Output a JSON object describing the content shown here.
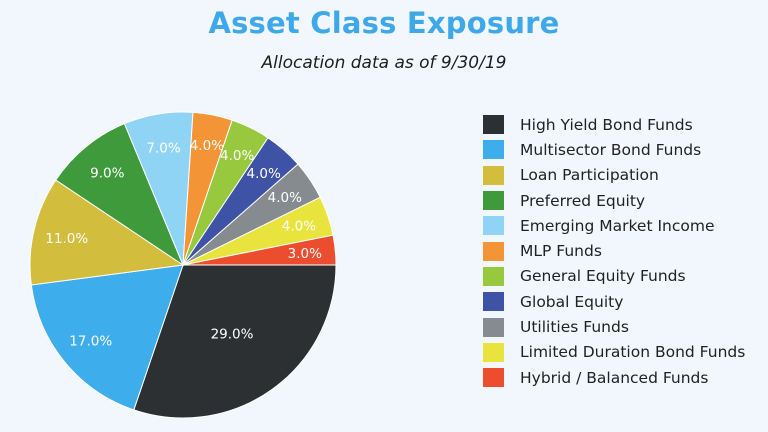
{
  "header": {
    "title": "Asset Class Exposure",
    "subtitle": "Allocation data as of 9/30/19"
  },
  "chart_data": {
    "type": "pie",
    "title": "Asset Class Exposure",
    "subtitle": "Allocation data as of 9/30/19",
    "legend_position": "right",
    "slices": [
      {
        "label": "High Yield Bond Funds",
        "value": 29.0,
        "display": "29.0%",
        "color": "#2d3033"
      },
      {
        "label": "Multisector Bond Funds",
        "value": 17.0,
        "display": "17.0%",
        "color": "#3daeeb"
      },
      {
        "label": "Loan Participation",
        "value": 11.0,
        "display": "11.0%",
        "color": "#d3bd3c"
      },
      {
        "label": "Preferred Equity",
        "value": 9.0,
        "display": "9.0%",
        "color": "#3f9a3b"
      },
      {
        "label": "Emerging Market Income",
        "value": 7.0,
        "display": "7.0%",
        "color": "#8fd4f4"
      },
      {
        "label": "MLP Funds",
        "value": 4.0,
        "display": "4.0%",
        "color": "#f39436"
      },
      {
        "label": "General Equity Funds",
        "value": 4.0,
        "display": "4.0%",
        "color": "#97c83d"
      },
      {
        "label": "Global Equity",
        "value": 4.0,
        "display": "4.0%",
        "color": "#3e52a6"
      },
      {
        "label": "Utilities Funds",
        "value": 4.0,
        "display": "4.0%",
        "color": "#868b8f"
      },
      {
        "label": "Limited Duration Bond Funds",
        "value": 4.0,
        "display": "4.0%",
        "color": "#e8e33d"
      },
      {
        "label": "Hybrid / Balanced Funds",
        "value": 3.0,
        "display": "3.0%",
        "color": "#ec4d2e"
      }
    ]
  }
}
